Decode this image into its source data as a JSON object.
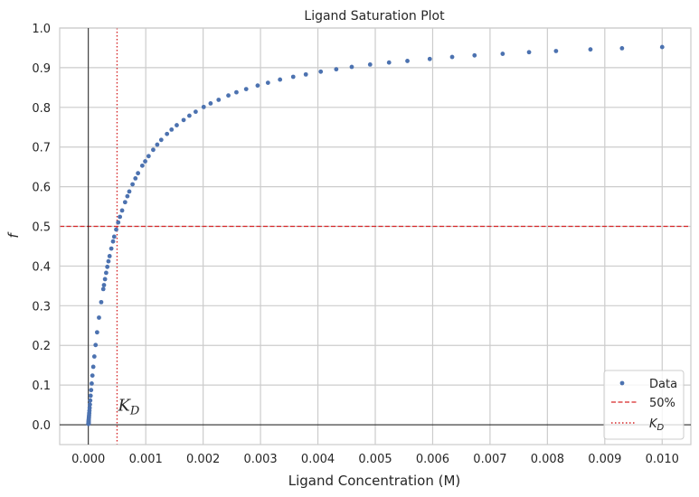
{
  "chart_data": {
    "type": "scatter",
    "title": "Ligand Saturation Plot",
    "xlabel": "Ligand Concentration (M)",
    "ylabel": "f",
    "xlim": [
      -0.0005,
      0.0105
    ],
    "ylim": [
      -0.05,
      1.0
    ],
    "x_ticks": [
      0.0,
      0.001,
      0.002,
      0.003,
      0.004,
      0.005,
      0.006,
      0.007,
      0.008,
      0.009,
      0.01
    ],
    "x_tick_labels": [
      "0.000",
      "0.001",
      "0.002",
      "0.003",
      "0.004",
      "0.005",
      "0.006",
      "0.007",
      "0.008",
      "0.009",
      "0.010"
    ],
    "y_ticks": [
      0.0,
      0.1,
      0.2,
      0.3,
      0.4,
      0.5,
      0.6,
      0.7,
      0.8,
      0.9,
      1.0
    ],
    "y_tick_labels": [
      "0.0",
      "0.1",
      "0.2",
      "0.3",
      "0.4",
      "0.5",
      "0.6",
      "0.7",
      "0.8",
      "0.9",
      "1.0"
    ],
    "grid": true,
    "legend_position": "bottom-right",
    "kd": 0.0005,
    "kd_label": "K",
    "kd_label_sub": "D",
    "series": [
      {
        "name": "Data",
        "marker": "point",
        "color": "#4c72b0",
        "x": [
          1e-06,
          1.2e-06,
          1.5e-06,
          1.8e-06,
          2.2e-06,
          2.7e-06,
          3.3e-06,
          3.9e-06,
          4.8e-06,
          5.8e-06,
          7e-06,
          8.5e-06,
          1.03e-05,
          1.25e-05,
          1.52e-05,
          1.84e-05,
          2.22e-05,
          2.69e-05,
          3.26e-05,
          3.95e-05,
          4.79e-05,
          5.81e-05,
          7.05e-05,
          8.55e-05,
          0.000104,
          0.000126,
          0.000152,
          0.000185,
          0.000224,
          0.000272,
          0.00033,
          0.0004,
          0.000485,
          0.000588,
          0.000713,
          0.000865,
          0.00105,
          0.00127,
          0.00154,
          0.00187,
          0.00227,
          0.00275,
          0.00334,
          0.00405,
          0.00491,
          0.00595,
          0.00722,
          0.00875,
          0.01,
          0.00026,
          0.00029,
          0.00031,
          0.00035,
          0.00037,
          0.00043,
          0.00045,
          0.00052,
          0.00055,
          0.00064,
          0.00068,
          0.00077,
          0.00082,
          0.00094,
          0.00099,
          0.00113,
          0.0012,
          0.00137,
          0.00145,
          0.00166,
          0.00176,
          0.00201,
          0.00213,
          0.00244,
          0.00258,
          0.00295,
          0.00313,
          0.00357,
          0.00379,
          0.00432,
          0.00459,
          0.00524,
          0.00556,
          0.00634,
          0.00673,
          0.00768,
          0.00815,
          0.0093
        ],
        "y": [
          0.002,
          0.0024,
          0.003,
          0.0036,
          0.0044,
          0.0054,
          0.0066,
          0.0077,
          0.0095,
          0.0115,
          0.0138,
          0.0167,
          0.0202,
          0.0244,
          0.0295,
          0.0355,
          0.0425,
          0.051,
          0.0612,
          0.0732,
          0.0874,
          0.104,
          0.124,
          0.146,
          0.172,
          0.201,
          0.233,
          0.27,
          0.309,
          0.352,
          0.398,
          0.444,
          0.492,
          0.54,
          0.588,
          0.634,
          0.677,
          0.718,
          0.755,
          0.789,
          0.819,
          0.846,
          0.87,
          0.89,
          0.908,
          0.922,
          0.935,
          0.946,
          0.952,
          0.342,
          0.367,
          0.383,
          0.412,
          0.425,
          0.462,
          0.474,
          0.51,
          0.524,
          0.561,
          0.576,
          0.606,
          0.621,
          0.653,
          0.664,
          0.693,
          0.706,
          0.733,
          0.744,
          0.768,
          0.779,
          0.801,
          0.81,
          0.83,
          0.838,
          0.855,
          0.862,
          0.877,
          0.883,
          0.896,
          0.902,
          0.913,
          0.917,
          0.927,
          0.931,
          0.939,
          0.942,
          0.949
        ]
      },
      {
        "name": "50%",
        "marker": "dashed-line",
        "color": "#d62728",
        "y": 0.5
      },
      {
        "name": "K",
        "name_sub": "D",
        "marker": "dotted-line",
        "color": "#d62728",
        "x": 0.0005
      }
    ]
  }
}
